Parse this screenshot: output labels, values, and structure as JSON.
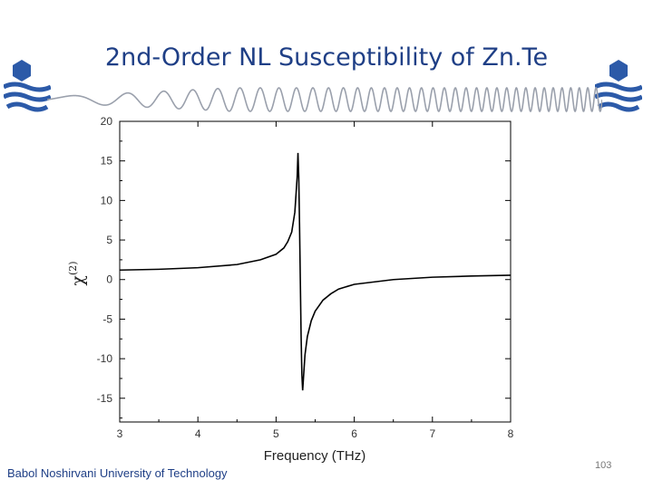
{
  "slide": {
    "title": "2nd-Order NL Susceptibility of Zn.Te",
    "footer": "Babol Noshirvani University of Technology",
    "page_number": "103"
  },
  "colors": {
    "title": "#1f3f86",
    "logo": "#2c5aa8",
    "wave": "#9aa0ac",
    "curve": "#000000"
  },
  "chart_data": {
    "type": "line",
    "title": "",
    "xlabel": "Frequency (THz)",
    "ylabel": "χ(2)",
    "xlim": [
      3,
      8
    ],
    "ylim": [
      -18,
      20
    ],
    "x_ticks": [
      "3",
      "4",
      "5",
      "6",
      "7",
      "8"
    ],
    "y_ticks": [
      "20",
      "15",
      "10",
      "5",
      "0",
      "-5",
      "-10",
      "-15"
    ],
    "grid": false,
    "series": [
      {
        "x": [
          3.0,
          3.5,
          4.0,
          4.5,
          4.8,
          5.0,
          5.1,
          5.15,
          5.2,
          5.24,
          5.27,
          5.28,
          5.29,
          5.3,
          5.31,
          5.32,
          5.33,
          5.34,
          5.35,
          5.37,
          5.4,
          5.45,
          5.5,
          5.6,
          5.7,
          5.8,
          6.0,
          6.5,
          7.0,
          7.5,
          8.0
        ],
        "y": [
          1.2,
          1.3,
          1.5,
          1.9,
          2.5,
          3.2,
          4.0,
          4.8,
          6.0,
          8.5,
          13.0,
          16.0,
          13.0,
          7.0,
          0.0,
          -7.0,
          -12.0,
          -14.0,
          -12.5,
          -9.5,
          -7.2,
          -5.2,
          -4.0,
          -2.6,
          -1.8,
          -1.2,
          -0.6,
          0.0,
          0.3,
          0.45,
          0.55
        ]
      }
    ]
  }
}
